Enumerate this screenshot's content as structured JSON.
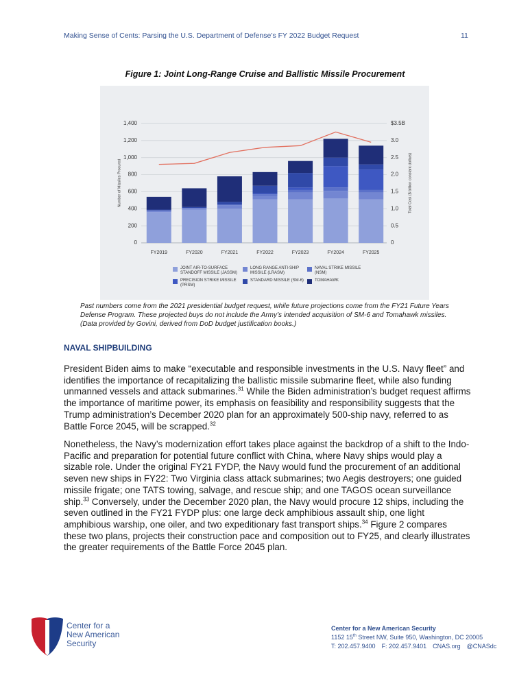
{
  "header": {
    "title": "Making Sense of Cents: Parsing the U.S. Department of Defense’s FY 2022 Budget Request",
    "page": "11"
  },
  "figure": {
    "caption": "Figure 1: Joint Long-Range Cruise and Ballistic Missile Procurement",
    "note": "Past numbers come from the 2021 presidential budget request, while future projections come from the FY21 Future Years Defense Program. These projected buys do not include the Army’s intended acquisition of SM-6 and Tomahawk missiles. (Data provided by Govini, derived from DoD budget justification books.)"
  },
  "chart_data": {
    "type": "stacked-bar-line",
    "ylabel": "Number of Missiles Procured",
    "y2label": "Total Cost ($ billion constant dollars)",
    "categories": [
      "FY2019",
      "FY2020",
      "FY2021",
      "FY2022",
      "FY2023",
      "FY2024",
      "FY2025"
    ],
    "ylim": [
      0,
      1400
    ],
    "yticks": [
      0,
      200,
      400,
      600,
      800,
      {
        "value": 1000,
        "label": "1,000"
      },
      {
        "value": 1200,
        "label": "1,200"
      },
      {
        "value": 1400,
        "label": "1,400"
      }
    ],
    "y2lim": [
      0,
      3.5
    ],
    "y2ticks": [
      0,
      0.5,
      {
        "value": 1,
        "label": "1.0"
      },
      1.5,
      {
        "value": 2,
        "label": "2.0"
      },
      2.5,
      {
        "value": 3,
        "label": "3.0"
      },
      {
        "value": 3.5,
        "label": "$3.5B"
      }
    ],
    "grid": true,
    "legend": "bottom",
    "series": [
      {
        "name": "JOINT AIR-TO-SURFACE STANDOFF MISSILE (JASSM)",
        "color": "#8fa0db",
        "values": [
          360,
          390,
          400,
          510,
          510,
          520,
          510
        ]
      },
      {
        "name": "LONG RANGE ANTI-SHIP MISSILE (LRASM)",
        "color": "#7386d2",
        "values": [
          20,
          20,
          40,
          40,
          80,
          90,
          80
        ]
      },
      {
        "name": "NAVAL STRIKE MISSILE (NSM)",
        "color": "#5b71c9",
        "values": [
          0,
          0,
          10,
          20,
          30,
          40,
          30
        ]
      },
      {
        "name": "PRECISION STRIKE MISSILE (PRSM)",
        "color": "#3e58c2",
        "values": [
          0,
          0,
          0,
          10,
          30,
          250,
          240
        ]
      },
      {
        "name": "STANDARD MISSILE (SM-6)",
        "color": "#3049a8",
        "values": [
          10,
          10,
          30,
          90,
          170,
          100,
          60
        ]
      },
      {
        "name": "TOMAHAWK",
        "color": "#1f2e78",
        "values": [
          150,
          220,
          300,
          160,
          140,
          220,
          220
        ]
      },
      {
        "type": "line",
        "axis": "y2",
        "color": "#e2705f",
        "values": [
          2.3,
          2.33,
          2.65,
          2.8,
          2.85,
          3.25,
          2.95
        ]
      }
    ]
  },
  "section": {
    "heading": "NAVAL SHIPBUILDING",
    "paragraphs": [
      [
        {
          "text": "President Biden aims to make “executable and responsible investments in the U.S. Navy fleet” and identifies the importance of recapitalizing the ballistic missile submarine fleet, while also funding unmanned vessels and attack submarines."
        },
        {
          "sup": "31"
        },
        {
          "text": " While the Biden administration’s budget request affirms the importance of maritime power, its emphasis on feasibility and responsibility suggests that the Trump administration’s December 2020 plan for an approximately 500-ship navy, referred to as Battle Force 2045, will be scrapped."
        },
        {
          "sup": "32"
        }
      ],
      [
        {
          "text": "Nonetheless, the Navy’s modernization effort takes place against the backdrop of a shift to the Indo-Pacific and preparation for potential future conflict with China, where Navy ships would play a sizable role. Under the original FY21 FYDP, the Navy would fund the procurement of an additional seven new ships in FY22: Two Virginia class attack submarines; two Aegis destroyers; one guided missile frigate; one TATS towing, salvage, and rescue ship; and one TAGOS ocean surveillance ship."
        },
        {
          "sup": "33"
        },
        {
          "text": " Conversely, under the December 2020 plan, the Navy would procure 12 ships, including the seven outlined in the FY21 FYDP plus: one large deck amphibious assault ship, one light amphibious warship, one oiler, and two expeditionary fast transport ships."
        },
        {
          "sup": "34"
        },
        {
          "text": " Figure 2 compares these two plans, projects their construction pace and composition out to FY25, and clearly illustrates the greater requirements of the Battle Force 2045 plan."
        }
      ]
    ]
  },
  "footer": {
    "logo": [
      "Center for a",
      "New American",
      "Security"
    ],
    "org": "Center for a New American Security",
    "address": [
      {
        "text": "1152 15"
      },
      {
        "sup": "th"
      },
      {
        "text": " Street NW, Suite 950, Washington, DC 20005"
      }
    ],
    "contacts": [
      "T: 202.457.9400",
      "F: 202.457.9401",
      "CNAS.org",
      "@CNASdc"
    ]
  }
}
